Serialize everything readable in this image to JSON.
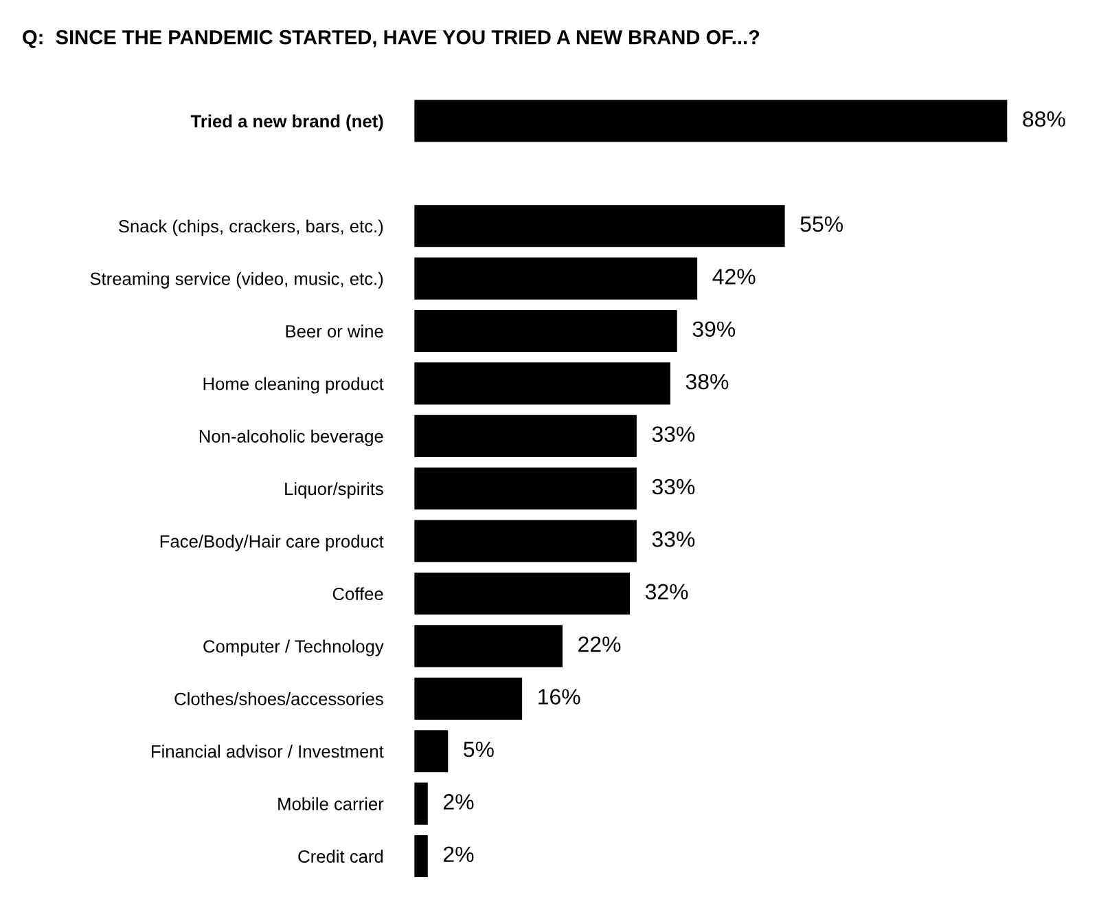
{
  "chart_data": {
    "type": "bar",
    "orientation": "horizontal",
    "title": "Q:  SINCE THE PANDEMIC STARTED, HAVE YOU TRIED A NEW BRAND OF...?",
    "categories": [
      "Tried a new brand (net)",
      null,
      "Snack (chips, crackers, bars, etc.)",
      "Streaming service (video, music, etc.)",
      "Beer or wine",
      "Home cleaning product",
      "Non-alcoholic beverage",
      "Liquor/spirits",
      "Face/Body/Hair care product",
      "Coffee",
      "Computer / Technology",
      "Clothes/shoes/accessories",
      "Financial advisor / Investment",
      "Mobile carrier",
      "Credit card"
    ],
    "values": [
      88,
      null,
      55,
      42,
      39,
      38,
      33,
      33,
      33,
      32,
      22,
      16,
      5,
      2,
      2
    ],
    "value_labels": [
      "88%",
      null,
      "55%",
      "42%",
      "39%",
      "38%",
      "33%",
      "33%",
      "33%",
      "32%",
      "22%",
      "16%",
      "5%",
      "2%",
      "2%"
    ],
    "color": "#000000",
    "grid": false,
    "legend": false
  }
}
